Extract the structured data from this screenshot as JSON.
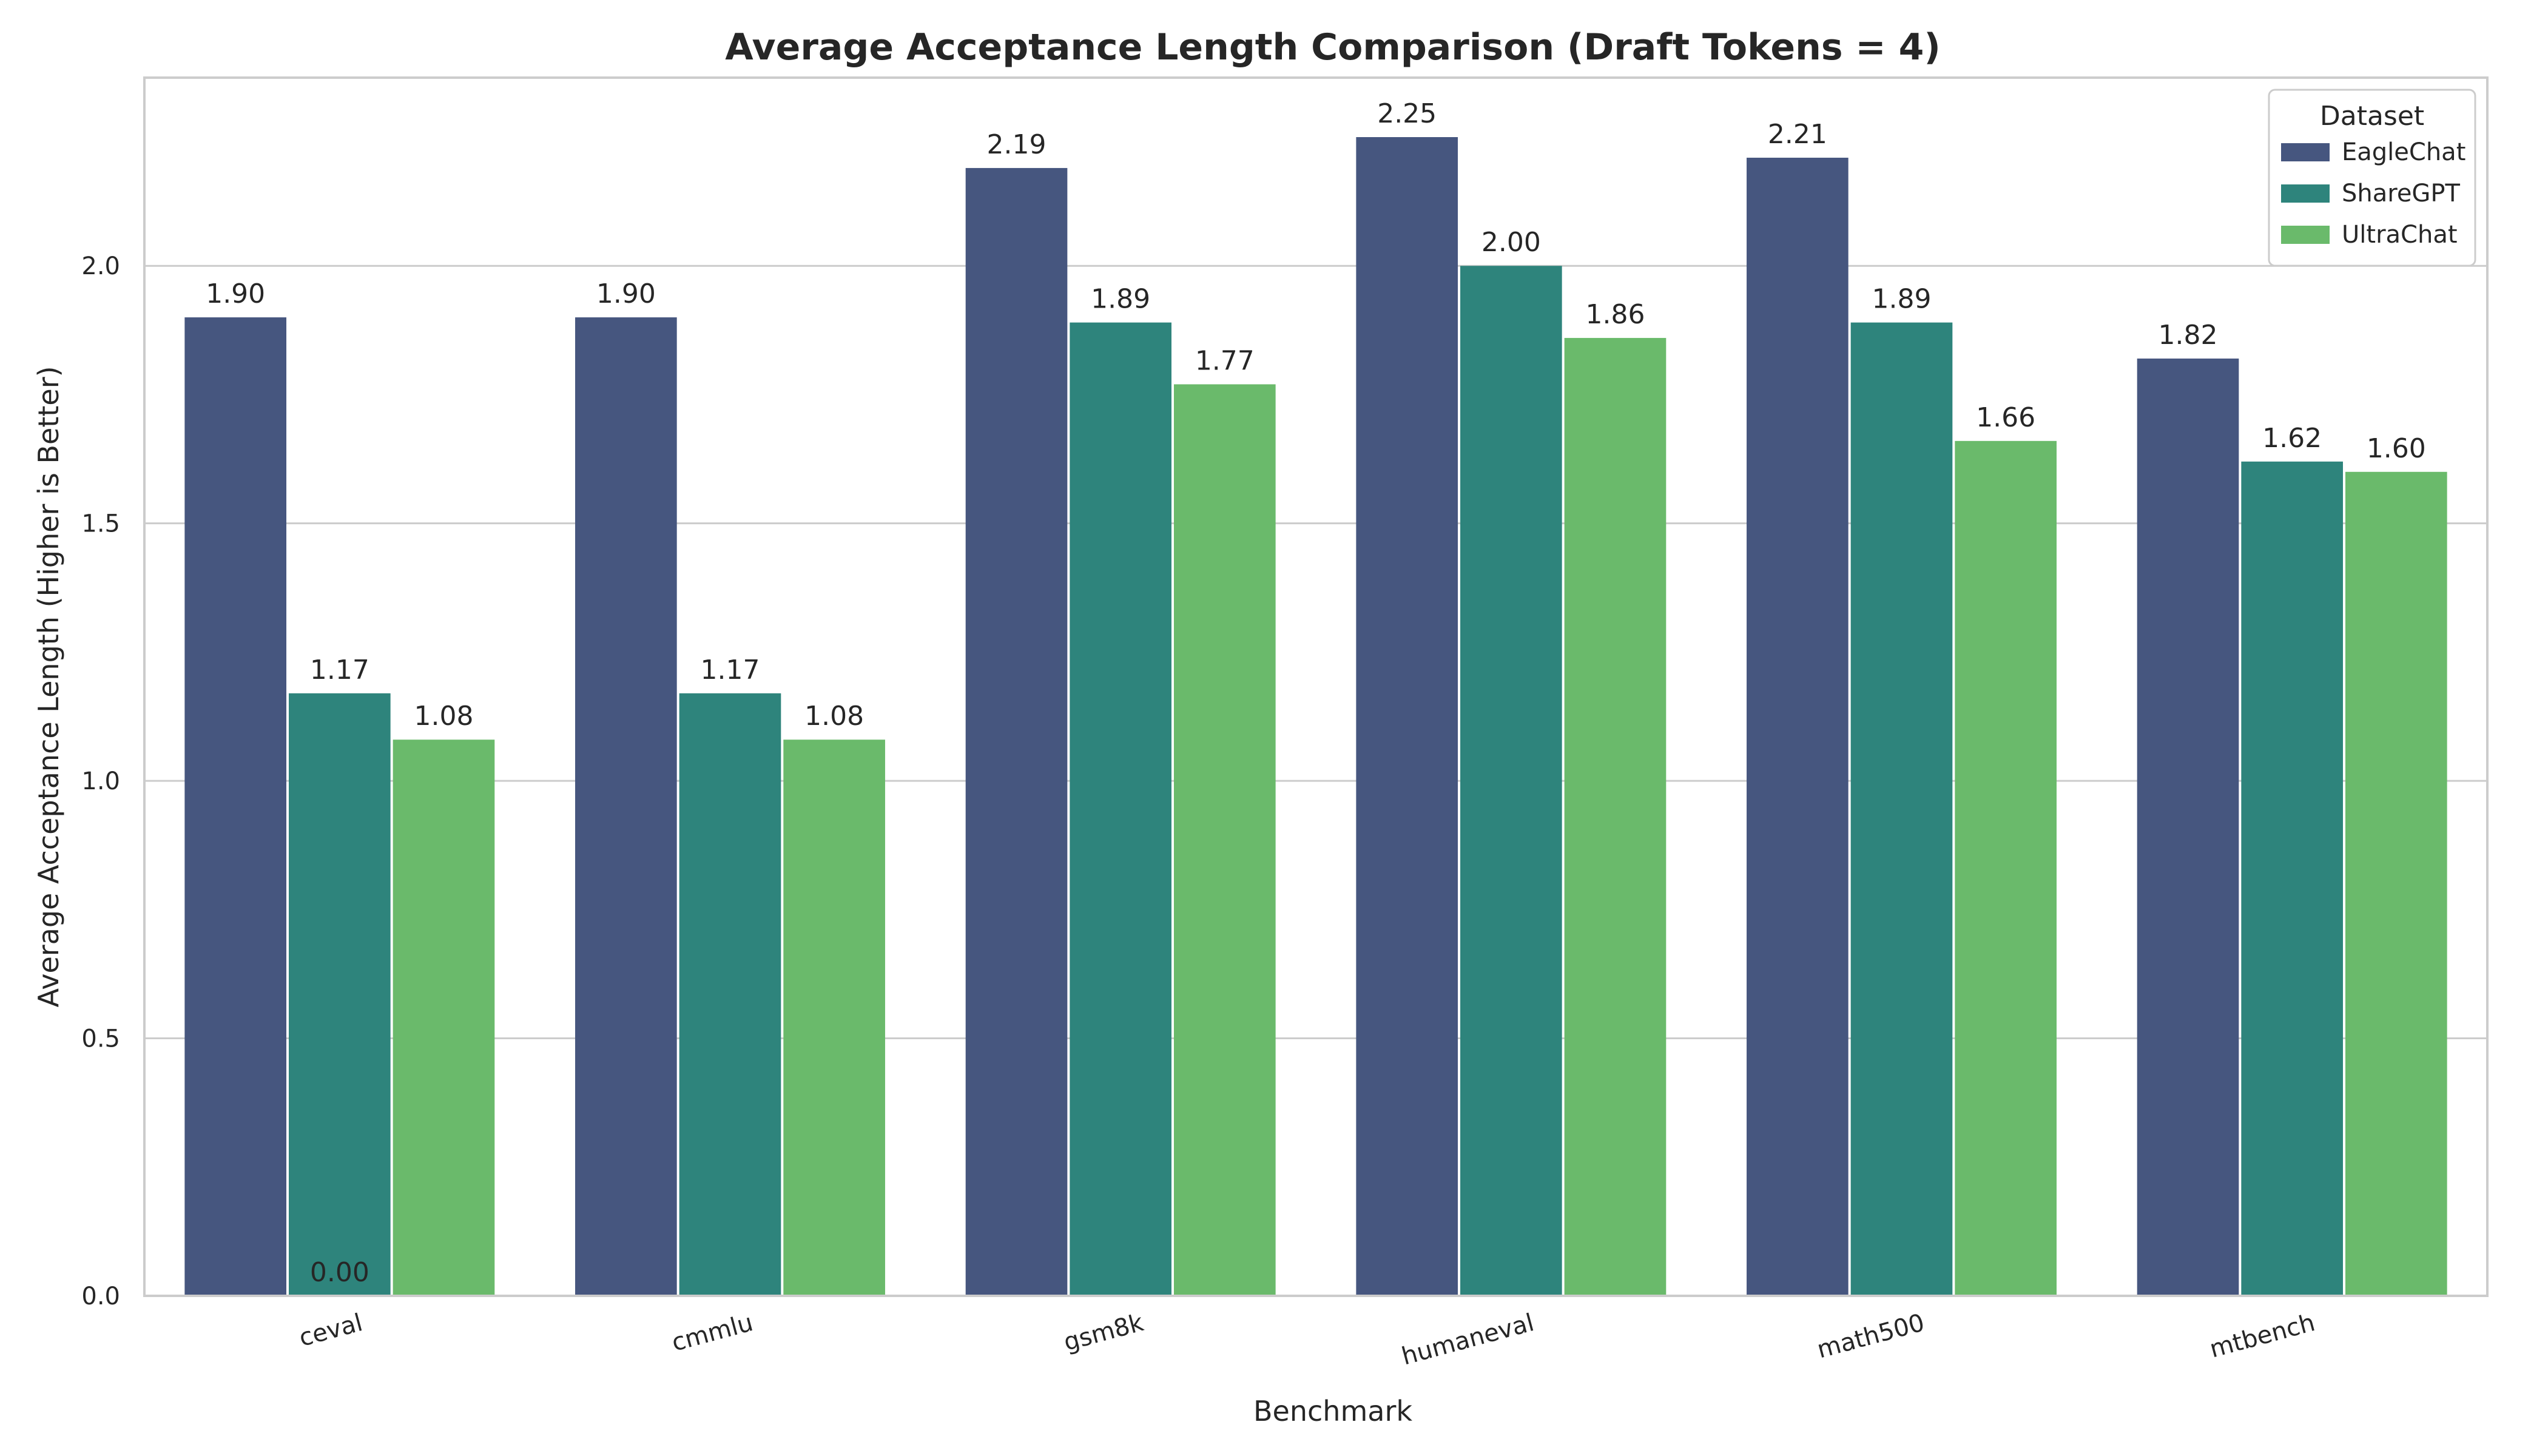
{
  "chart_data": {
    "type": "bar",
    "title": "Average Acceptance Length Comparison (Draft Tokens = 4)",
    "xlabel": "Benchmark",
    "ylabel": "Average Acceptance Length (Higher is Better)",
    "ylim": [
      0,
      2.35
    ],
    "yticks": [
      "0.0",
      "0.5",
      "1.0",
      "1.5",
      "2.0"
    ],
    "grid": true,
    "legend_position": "top-right",
    "legend_title": "Dataset",
    "categories": [
      "ceval",
      "cmmlu",
      "gsm8k",
      "humaneval",
      "math500",
      "mtbench"
    ],
    "series": [
      {
        "name": "EagleChat",
        "color": "#46567f",
        "values": [
          1.9,
          1.9,
          2.19,
          2.25,
          2.21,
          1.82
        ],
        "labels": [
          "1.90",
          "1.90",
          "2.19",
          "2.25",
          "2.21",
          "1.82"
        ]
      },
      {
        "name": "ShareGPT",
        "color": "#2e847c",
        "values": [
          1.17,
          1.17,
          1.89,
          2.0,
          1.89,
          1.62
        ],
        "labels": [
          "1.17",
          "1.17",
          "1.89",
          "2.00",
          "1.89",
          "1.62"
        ]
      },
      {
        "name": "UltraChat",
        "color": "#6aba6b",
        "values": [
          1.08,
          1.08,
          1.77,
          1.86,
          1.66,
          1.6
        ],
        "labels": [
          "1.08",
          "1.08",
          "1.77",
          "1.86",
          "1.66",
          "1.60"
        ]
      }
    ],
    "annotations": [
      {
        "text": "0.00",
        "category": "ceval",
        "series": "ShareGPT",
        "value": 0.0
      }
    ]
  }
}
